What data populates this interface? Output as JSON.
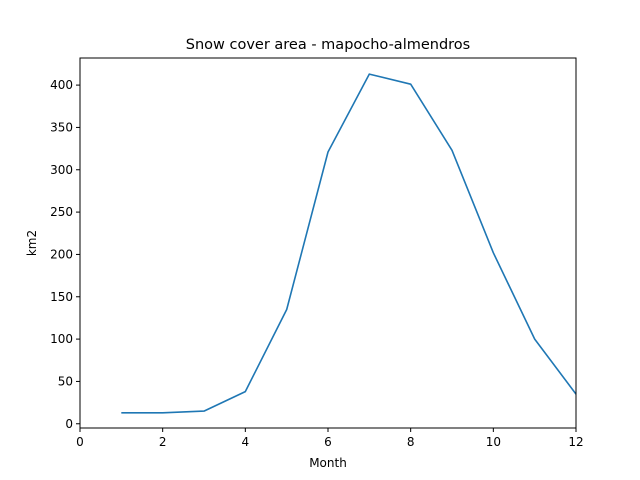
{
  "chart_data": {
    "type": "line",
    "title": "Snow cover area - mapocho-almendros",
    "xlabel": "Month",
    "ylabel": "km2",
    "xlim": [
      0,
      12
    ],
    "ylim": [
      -5,
      432
    ],
    "xticks": [
      0,
      2,
      4,
      6,
      8,
      10,
      12
    ],
    "yticks": [
      0,
      50,
      100,
      150,
      200,
      250,
      300,
      350,
      400
    ],
    "grid": false,
    "legend": "none",
    "series": [
      {
        "color": "#1f77b4",
        "x": [
          1,
          2,
          3,
          4,
          5,
          6,
          7,
          8,
          9,
          10,
          11,
          12
        ],
        "y": [
          13,
          13,
          15,
          38,
          135,
          321,
          413,
          401,
          323,
          202,
          100,
          35
        ]
      }
    ]
  }
}
